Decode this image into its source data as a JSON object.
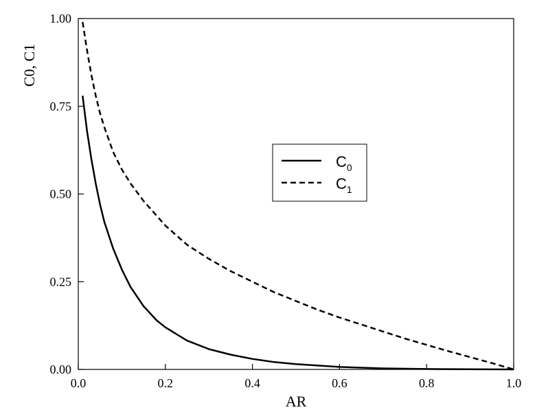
{
  "chart_data": {
    "type": "line",
    "title": "",
    "xlabel": "AR",
    "ylabel": {
      "a": "C",
      "a_sub": "0",
      "sep": ", C",
      "b_sub": "1"
    },
    "xlim": [
      0.0,
      1.0
    ],
    "ylim": [
      0.0,
      1.0
    ],
    "xticks": [
      "0.0",
      "0.2",
      "0.4",
      "0.6",
      "0.8",
      "1.0"
    ],
    "yticks": [
      "0.00",
      "0.25",
      "0.50",
      "0.75",
      "1.00"
    ],
    "grid": false,
    "legend_position": "center-right",
    "series": [
      {
        "name": "C",
        "name_sub": "0",
        "style": "solid",
        "x": [
          0.01,
          0.02,
          0.03,
          0.04,
          0.05,
          0.06,
          0.08,
          0.1,
          0.12,
          0.15,
          0.18,
          0.2,
          0.25,
          0.3,
          0.35,
          0.4,
          0.45,
          0.5,
          0.6,
          0.7,
          0.8,
          0.9,
          1.0
        ],
        "y": [
          0.78,
          0.68,
          0.6,
          0.53,
          0.47,
          0.42,
          0.345,
          0.285,
          0.235,
          0.18,
          0.14,
          0.12,
          0.082,
          0.058,
          0.042,
          0.03,
          0.021,
          0.015,
          0.007,
          0.003,
          0.0012,
          0.0004,
          0.0
        ]
      },
      {
        "name": "C",
        "name_sub": "1",
        "style": "dashed",
        "x": [
          0.01,
          0.02,
          0.03,
          0.04,
          0.05,
          0.06,
          0.08,
          0.1,
          0.12,
          0.15,
          0.2,
          0.25,
          0.3,
          0.35,
          0.4,
          0.45,
          0.5,
          0.55,
          0.6,
          0.65,
          0.7,
          0.75,
          0.8,
          0.85,
          0.9,
          0.95,
          1.0
        ],
        "y": [
          0.99,
          0.91,
          0.84,
          0.78,
          0.73,
          0.69,
          0.62,
          0.57,
          0.53,
          0.48,
          0.41,
          0.355,
          0.315,
          0.28,
          0.25,
          0.22,
          0.195,
          0.17,
          0.148,
          0.128,
          0.108,
          0.088,
          0.07,
          0.052,
          0.035,
          0.018,
          0.0
        ]
      }
    ]
  }
}
